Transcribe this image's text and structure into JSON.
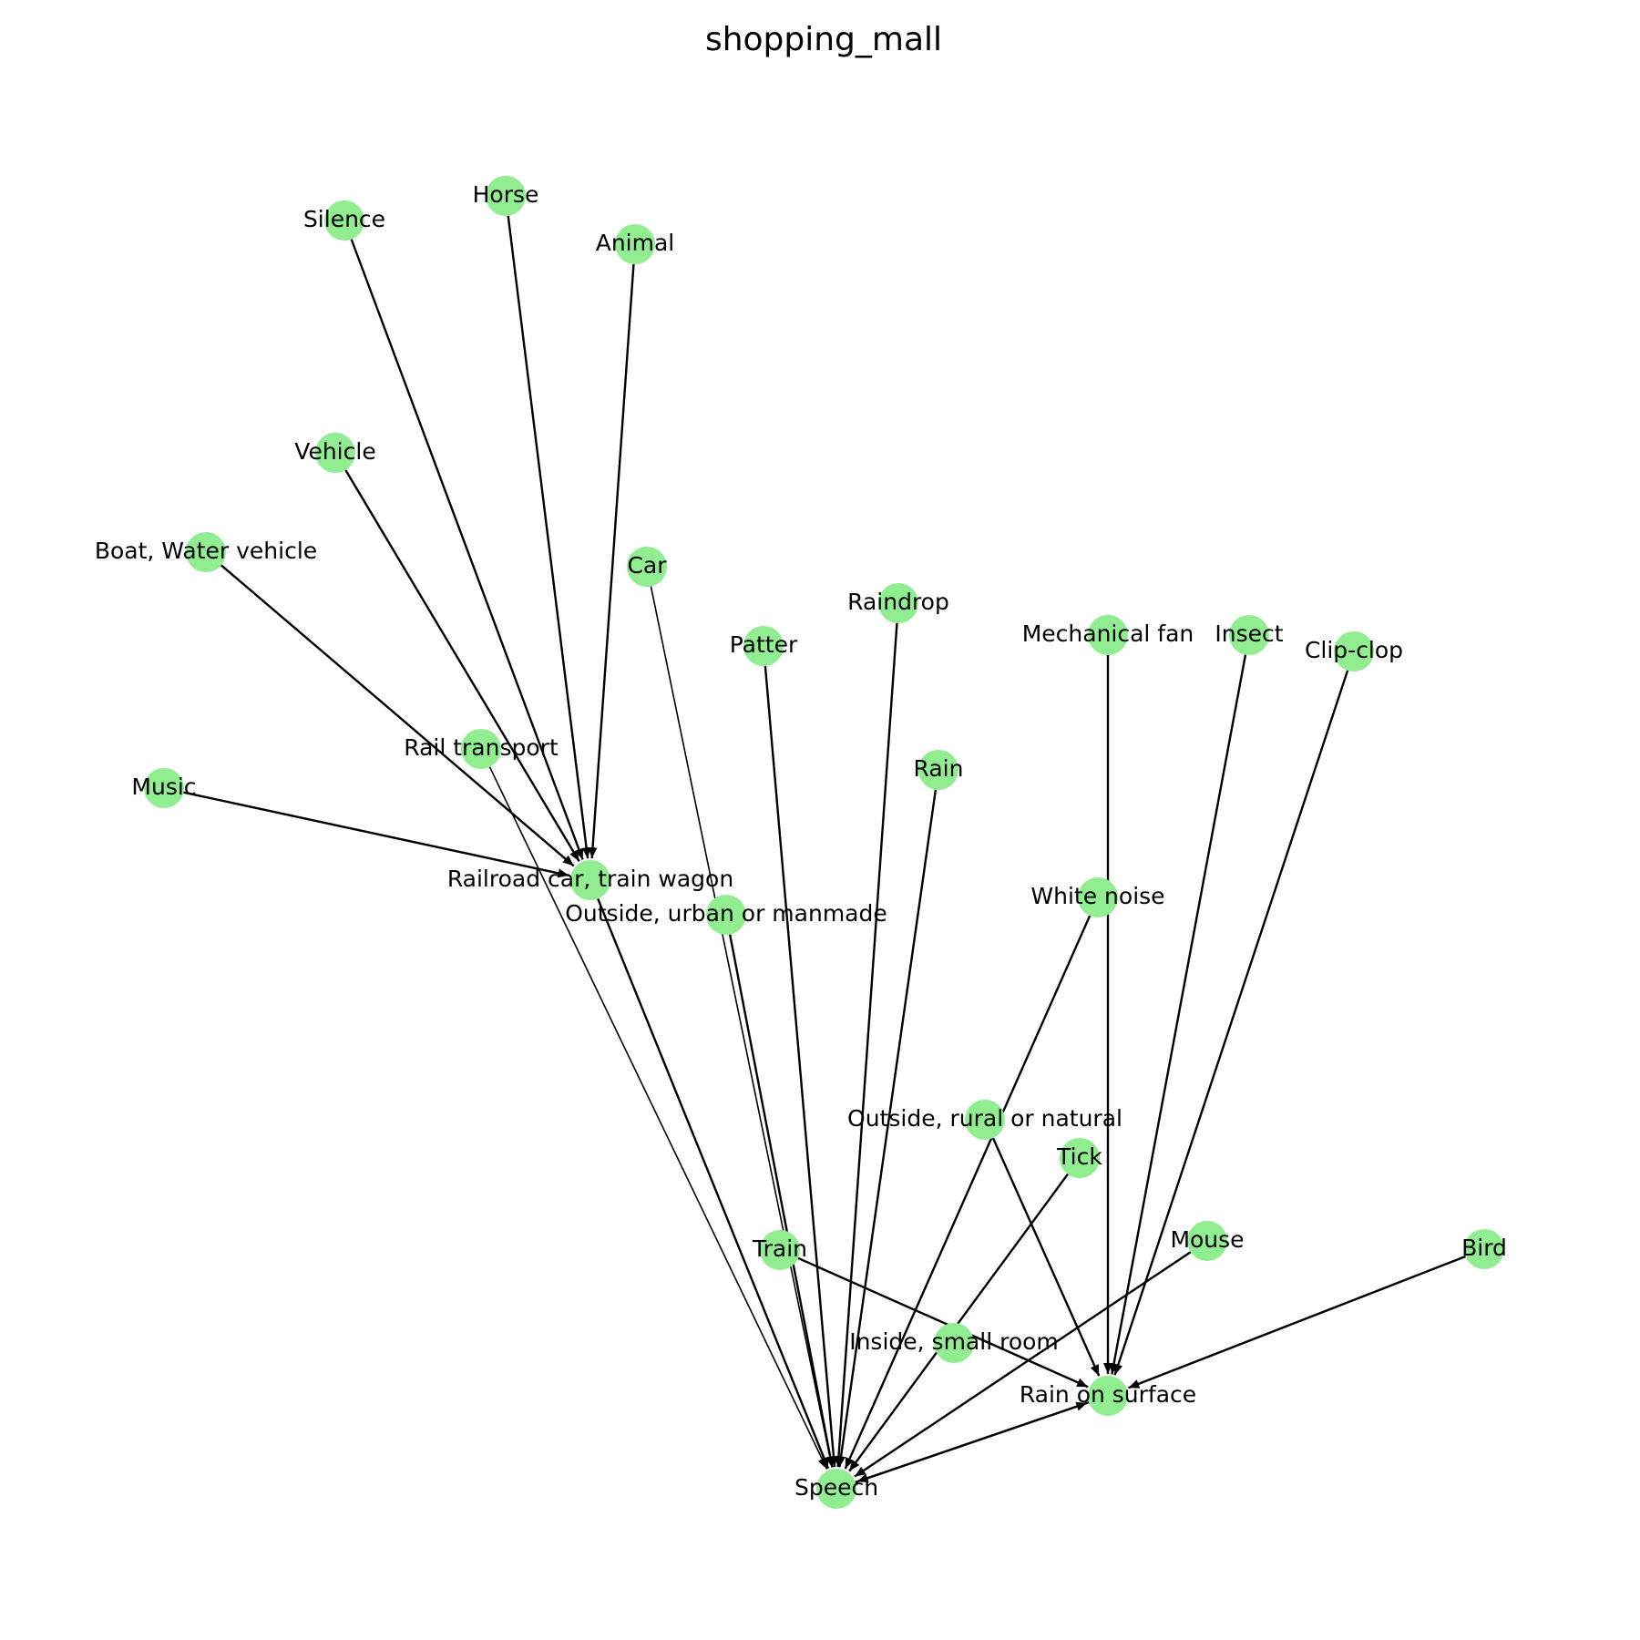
{
  "title": "shopping_mall",
  "colors": {
    "node": "#90ee90",
    "edge": "#000000",
    "background": "#ffffff",
    "text": "#000000"
  },
  "nodes": [
    {
      "id": "horse",
      "label": "Horse"
    },
    {
      "id": "silence",
      "label": "Silence"
    },
    {
      "id": "animal",
      "label": "Animal"
    },
    {
      "id": "vehicle",
      "label": "Vehicle"
    },
    {
      "id": "boat",
      "label": "Boat, Water vehicle"
    },
    {
      "id": "car",
      "label": "Car"
    },
    {
      "id": "raindrop",
      "label": "Raindrop"
    },
    {
      "id": "patter",
      "label": "Patter"
    },
    {
      "id": "mechfan",
      "label": "Mechanical fan"
    },
    {
      "id": "insect",
      "label": "Insect"
    },
    {
      "id": "clipclop",
      "label": "Clip-clop"
    },
    {
      "id": "rail",
      "label": "Rail transport"
    },
    {
      "id": "rain",
      "label": "Rain"
    },
    {
      "id": "music",
      "label": "Music"
    },
    {
      "id": "railroad",
      "label": "Railroad car, train wagon"
    },
    {
      "id": "urban",
      "label": "Outside, urban or manmade"
    },
    {
      "id": "whitenoise",
      "label": "White noise"
    },
    {
      "id": "rural",
      "label": "Outside, rural or natural"
    },
    {
      "id": "tick",
      "label": "Tick"
    },
    {
      "id": "train",
      "label": "Train"
    },
    {
      "id": "mouse",
      "label": "Mouse"
    },
    {
      "id": "bird",
      "label": "Bird"
    },
    {
      "id": "smallroom",
      "label": "Inside, small room"
    },
    {
      "id": "rainsurface",
      "label": "Rain on surface"
    },
    {
      "id": "speech",
      "label": "Speech"
    }
  ],
  "edges": [
    {
      "source": "horse",
      "target": "railroad"
    },
    {
      "source": "silence",
      "target": "railroad"
    },
    {
      "source": "animal",
      "target": "railroad"
    },
    {
      "source": "vehicle",
      "target": "railroad"
    },
    {
      "source": "boat",
      "target": "railroad"
    },
    {
      "source": "music",
      "target": "railroad"
    },
    {
      "source": "railroad",
      "target": "speech"
    },
    {
      "source": "rail",
      "target": "speech"
    },
    {
      "source": "car",
      "target": "speech"
    },
    {
      "source": "urban",
      "target": "speech"
    },
    {
      "source": "patter",
      "target": "speech"
    },
    {
      "source": "raindrop",
      "target": "speech"
    },
    {
      "source": "rain",
      "target": "speech"
    },
    {
      "source": "whitenoise",
      "target": "speech"
    },
    {
      "source": "tick",
      "target": "speech"
    },
    {
      "source": "mouse",
      "target": "speech"
    },
    {
      "source": "rainsurface",
      "target": "speech"
    },
    {
      "source": "speech",
      "target": "rainsurface"
    },
    {
      "source": "mechfan",
      "target": "rainsurface"
    },
    {
      "source": "insect",
      "target": "rainsurface"
    },
    {
      "source": "clipclop",
      "target": "rainsurface"
    },
    {
      "source": "rural",
      "target": "rainsurface"
    },
    {
      "source": "train",
      "target": "rainsurface"
    },
    {
      "source": "bird",
      "target": "rainsurface"
    }
  ]
}
